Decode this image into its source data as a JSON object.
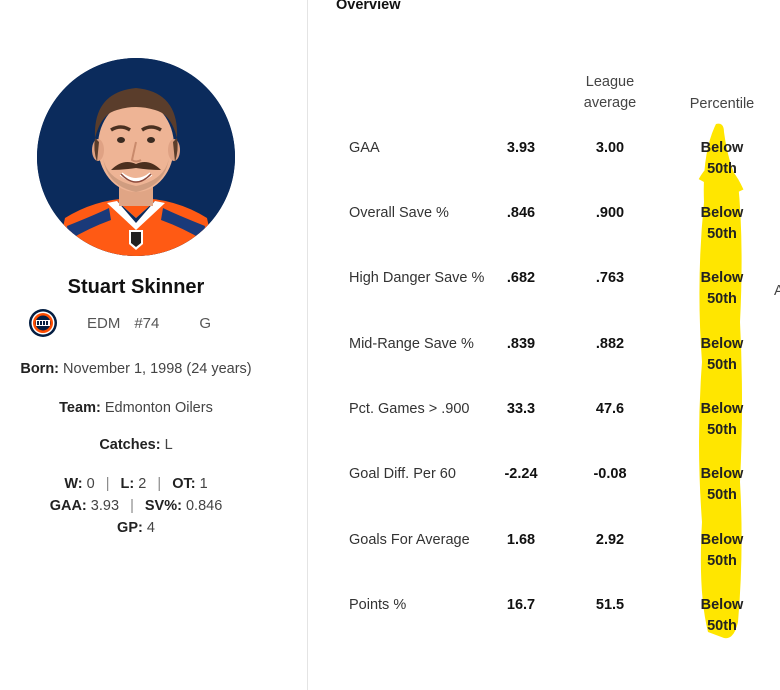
{
  "profile": {
    "name": "Stuart Skinner",
    "team_abbr": "EDM",
    "jersey": "#74",
    "position": "G",
    "born_label": "Born:",
    "born_value": "November 1, 1998 (24 years)",
    "team_label": "Team:",
    "team_value": "Edmonton Oilers",
    "catches_label": "Catches:",
    "catches_value": "L",
    "w_label": "W:",
    "w_value": "0",
    "l_label": "L:",
    "l_value": "2",
    "ot_label": "OT:",
    "ot_value": "1",
    "gaa_label": "GAA:",
    "gaa_value": "3.93",
    "sv_label": "SV%:",
    "sv_value": "0.846",
    "gp_label": "GP:",
    "gp_value": "4",
    "separator": "|"
  },
  "overview": {
    "title": "Overview",
    "head_league_line1": "League",
    "head_league_line2": "average",
    "head_percentile": "Percentile",
    "rows": [
      {
        "metric": "GAA",
        "value": "3.93",
        "league": "3.00",
        "pct1": "Below",
        "pct2": "50th"
      },
      {
        "metric": "Overall Save %",
        "value": ".846",
        "league": ".900",
        "pct1": "Below",
        "pct2": "50th"
      },
      {
        "metric": "High Danger Save %",
        "value": ".682",
        "league": ".763",
        "pct1": "Below",
        "pct2": "50th"
      },
      {
        "metric": "Mid-Range Save %",
        "value": ".839",
        "league": ".882",
        "pct1": "Below",
        "pct2": "50th"
      },
      {
        "metric": "Pct. Games > .900",
        "value": "33.3",
        "league": "47.6",
        "pct1": "Below",
        "pct2": "50th"
      },
      {
        "metric": "Goal Diff. Per 60",
        "value": "-2.24",
        "league": "-0.08",
        "pct1": "Below",
        "pct2": "50th"
      },
      {
        "metric": "Goals For Average",
        "value": "1.68",
        "league": "2.92",
        "pct1": "Below",
        "pct2": "50th"
      },
      {
        "metric": "Points %",
        "value": "16.7",
        "league": "51.5",
        "pct1": "Below",
        "pct2": "50th"
      }
    ],
    "edge_letter": "A"
  },
  "colors": {
    "highlight": "#ffe600",
    "avatar_bg": "#0b2b5c",
    "oilers_orange": "#ff4c00",
    "oilers_blue": "#041e42"
  },
  "icons": {
    "team_logo": "oilers-logo-icon",
    "avatar": "player-headshot"
  }
}
